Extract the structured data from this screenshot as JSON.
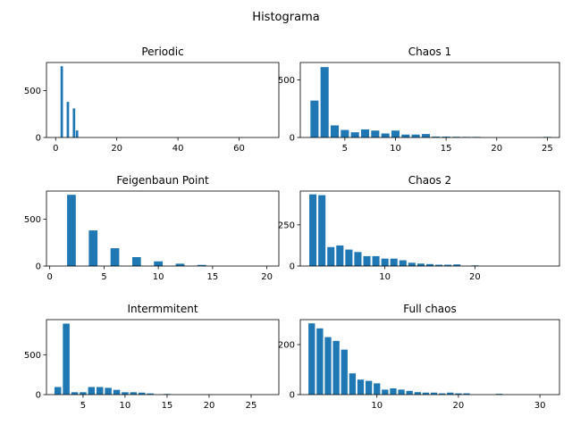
{
  "suptitle": "Histograma",
  "chart_data": [
    {
      "type": "bar",
      "title": "Periodic",
      "xlim": [
        -3,
        73
      ],
      "ylim": [
        0,
        800
      ],
      "xticks": [
        0,
        20,
        40,
        60
      ],
      "yticks": [
        0,
        500
      ],
      "bar_width": 0.8,
      "x": [
        2,
        4,
        6,
        7
      ],
      "values": [
        760,
        380,
        310,
        75
      ]
    },
    {
      "type": "bar",
      "title": "Chaos 1",
      "xlim": [
        0.6,
        26.2
      ],
      "ylim": [
        0,
        650
      ],
      "xticks": [
        5,
        10,
        15,
        20,
        25
      ],
      "yticks": [
        0,
        500
      ],
      "bar_width": 0.8,
      "x": [
        2,
        3,
        4,
        5,
        6,
        7,
        8,
        9,
        10,
        11,
        12,
        13,
        14,
        15,
        16,
        17,
        18,
        25
      ],
      "values": [
        320,
        610,
        105,
        65,
        45,
        70,
        60,
        35,
        60,
        25,
        25,
        30,
        8,
        8,
        6,
        5,
        5,
        5
      ]
    },
    {
      "type": "bar",
      "title": "Feigenbaun Point",
      "xlim": [
        -0.3,
        21.1
      ],
      "ylim": [
        0,
        800
      ],
      "xticks": [
        0,
        5,
        10,
        15,
        20
      ],
      "yticks": [
        0,
        500
      ],
      "bar_width": 0.8,
      "x": [
        2,
        4,
        6,
        8,
        10,
        12,
        14
      ],
      "values": [
        760,
        380,
        190,
        95,
        50,
        25,
        12
      ]
    },
    {
      "type": "bar",
      "title": "Chaos 2",
      "xlim": [
        0.6,
        29.4
      ],
      "ylim": [
        0,
        455
      ],
      "xticks": [
        10,
        20
      ],
      "yticks": [
        0,
        250
      ],
      "bar_width": 0.8,
      "x": [
        2,
        3,
        4,
        5,
        6,
        7,
        8,
        9,
        10,
        11,
        12,
        13,
        14,
        15,
        16,
        17,
        18,
        20
      ],
      "values": [
        435,
        430,
        115,
        125,
        100,
        85,
        60,
        60,
        45,
        45,
        35,
        20,
        15,
        12,
        8,
        8,
        10,
        4
      ]
    },
    {
      "type": "bar",
      "title": "Intermmitent",
      "xlim": [
        0.65,
        28.3
      ],
      "ylim": [
        0,
        940
      ],
      "xticks": [
        5,
        10,
        15,
        20,
        25
      ],
      "yticks": [
        0,
        500
      ],
      "bar_width": 0.8,
      "x": [
        2,
        3,
        4,
        5,
        6,
        7,
        8,
        9,
        10,
        11,
        12,
        13,
        15,
        20
      ],
      "values": [
        95,
        890,
        30,
        30,
        95,
        95,
        85,
        60,
        30,
        30,
        25,
        15,
        8,
        3
      ]
    },
    {
      "type": "bar",
      "title": "Full chaos",
      "xlim": [
        0.6,
        32.4
      ],
      "ylim": [
        0,
        300
      ],
      "xticks": [
        10,
        20,
        30
      ],
      "yticks": [
        0,
        200
      ],
      "bar_width": 0.8,
      "x": [
        2,
        3,
        4,
        5,
        6,
        7,
        8,
        9,
        10,
        11,
        12,
        13,
        14,
        15,
        16,
        17,
        18,
        19,
        20,
        21,
        25
      ],
      "values": [
        285,
        265,
        230,
        215,
        180,
        85,
        60,
        55,
        45,
        20,
        25,
        20,
        15,
        10,
        8,
        8,
        5,
        8,
        5,
        5,
        3
      ]
    }
  ]
}
